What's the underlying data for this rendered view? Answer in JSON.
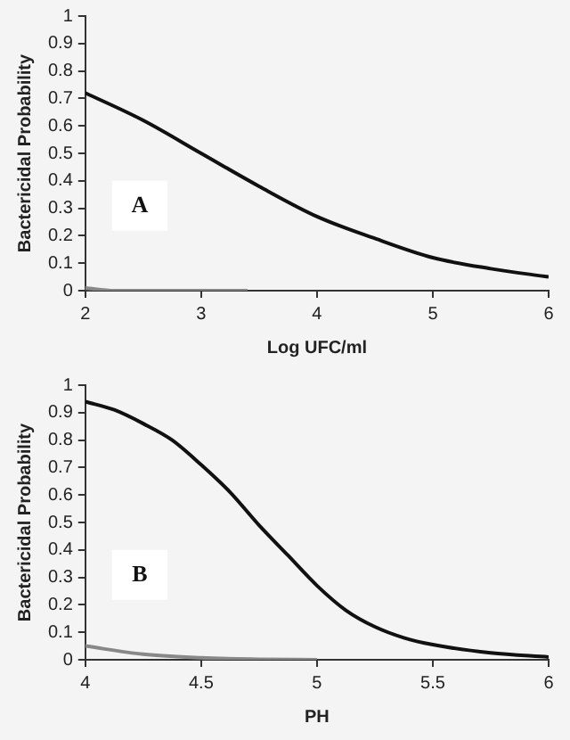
{
  "chart_data": [
    {
      "type": "line",
      "xlabel": "Log UFC/ml",
      "ylabel": "Bactericidal Probability",
      "annotations": [
        "A"
      ],
      "xlim": [
        2,
        6
      ],
      "xticks": [
        2,
        3,
        4,
        5,
        6
      ],
      "ylim": [
        0,
        1
      ],
      "yticks": [
        0,
        0.1,
        0.2,
        0.3,
        0.4,
        0.5,
        0.6,
        0.7,
        0.8,
        0.9,
        1
      ],
      "grid": false,
      "legend": false,
      "marker": "none",
      "line_style": "solid",
      "series": [
        {
          "color": "#111111",
          "x": [
            2,
            2.5,
            3,
            3.5,
            4,
            4.5,
            5,
            5.5,
            6
          ],
          "values": [
            0.72,
            0.62,
            0.5,
            0.38,
            0.27,
            0.19,
            0.12,
            0.08,
            0.05
          ]
        },
        {
          "color": "#888888",
          "x": [
            2,
            2.25,
            2.8,
            3.4
          ],
          "values": [
            0.01,
            0,
            0,
            0
          ]
        }
      ]
    },
    {
      "type": "line",
      "xlabel": "PH",
      "ylabel": "Bactericidal Probability",
      "annotations": [
        "B"
      ],
      "xlim": [
        4,
        6
      ],
      "xticks": [
        4,
        4.5,
        5,
        5.5,
        6
      ],
      "ylim": [
        0,
        1
      ],
      "yticks": [
        0,
        0.1,
        0.2,
        0.3,
        0.4,
        0.5,
        0.6,
        0.7,
        0.8,
        0.9,
        1
      ],
      "grid": false,
      "legend": false,
      "marker": "none",
      "line_style": "solid",
      "series": [
        {
          "color": "#111111",
          "x": [
            4,
            4.125,
            4.25,
            4.375,
            4.5,
            4.625,
            4.75,
            4.875,
            5,
            5.125,
            5.25,
            5.375,
            5.5,
            5.75,
            6
          ],
          "values": [
            0.94,
            0.91,
            0.86,
            0.8,
            0.71,
            0.61,
            0.49,
            0.38,
            0.27,
            0.18,
            0.12,
            0.08,
            0.055,
            0.025,
            0.01
          ]
        },
        {
          "color": "#888888",
          "x": [
            4,
            4.25,
            4.5,
            4.75,
            5
          ],
          "values": [
            0.05,
            0.02,
            0.007,
            0.002,
            0
          ]
        }
      ]
    }
  ]
}
